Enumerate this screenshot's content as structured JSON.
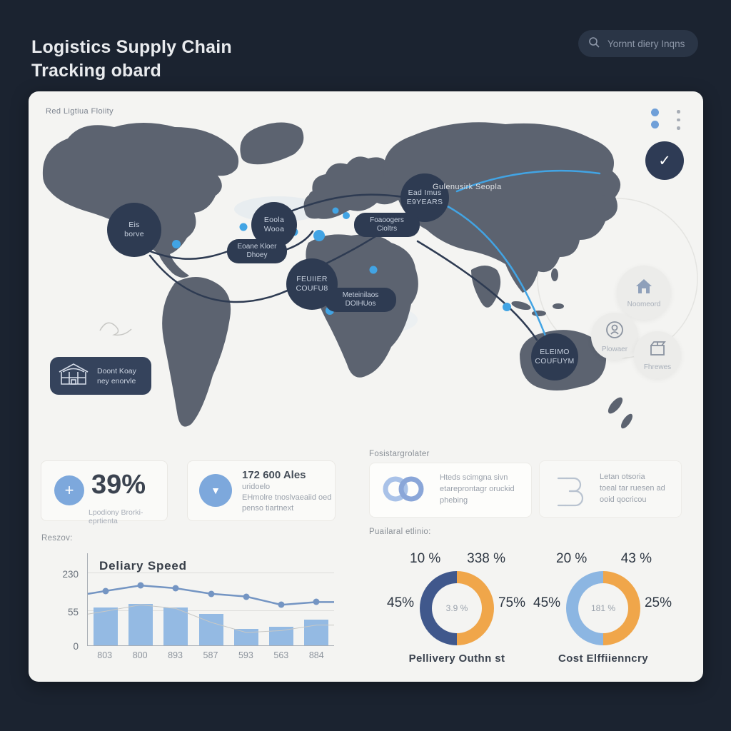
{
  "page": {
    "title_line1": "Logistics Supply Chain",
    "title_line2": "Tracking obard"
  },
  "search": {
    "placeholder": "Yornnt diery Inqns"
  },
  "panel": {
    "header_label": "Red Ligtiua Floiity",
    "controls": {
      "check_glyph": "✓"
    },
    "map": {
      "nodes": [
        {
          "line1": "Eis",
          "line2": "borve"
        },
        {
          "line1": "Eoola",
          "line2": "Wooa"
        },
        {
          "line1": "Ead Imus",
          "line2": "E9YEARS"
        },
        {
          "line1": "FEUIIER",
          "line2": "COUFU8"
        },
        {
          "line1": "ELEIMO",
          "line2": "COUFUYM"
        }
      ],
      "pills": [
        {
          "line1": "Eoane Kloer",
          "line2": "Dhoey"
        },
        {
          "line1": "Foaoogers",
          "line2": "Cioltrs"
        },
        {
          "line1": "Meteinilaos",
          "line2": "DOIHUos"
        }
      ],
      "float_label": "Gulenusirk Seopla",
      "badges": [
        {
          "label": "Noomeord",
          "icon": "warehouse-pin-icon"
        },
        {
          "label": "Plowaer",
          "icon": "badge-circle-icon"
        },
        {
          "label": "Fhrewes",
          "icon": "package-icon"
        }
      ],
      "legend_pill": {
        "line1": "Doont Koay",
        "line2": "ney enorvle",
        "icon": "warehouse-icon"
      }
    },
    "stats": [
      {
        "icon_glyph": "+",
        "value": "39%",
        "label": "Lpodiony Brorki-eprtienta"
      },
      {
        "icon_glyph": "▼",
        "value": "172 600 Ales",
        "lines": [
          "uridoelo",
          "EHmolre tnoslvaeaiid oed",
          "penso tiartnext"
        ]
      }
    ],
    "info_left_header": "Fosistargrolater",
    "info_cards": [
      {
        "icon": "linked-rings-icon",
        "lines": [
          "Hteds scimgna sivn",
          "etareprontagr oruckid",
          "phebing"
        ]
      },
      {
        "icon": "clamp-icon",
        "lines": [
          "Letan otsoria",
          "toeal tar ruesen ad",
          "ooid qocricou"
        ]
      }
    ],
    "bottom_left_label": "Reszov:",
    "donut_header": "Puailaral etlinio:"
  },
  "chart_data": [
    {
      "type": "bar",
      "title": "Deliary Speed",
      "categories": [
        "803",
        "800",
        "893",
        "587",
        "593",
        "563",
        "884"
      ],
      "series": [
        {
          "name": "bars",
          "type": "bar",
          "values": [
            62,
            70,
            62,
            50,
            27,
            30,
            42
          ]
        },
        {
          "name": "trend-line",
          "type": "line",
          "values": [
            157,
            185,
            171,
            144,
            130,
            89,
            103
          ]
        }
      ],
      "ylim": [
        0,
        230
      ],
      "yticks": [
        {
          "label": "230",
          "pct": 78
        },
        {
          "label": "55",
          "pct": 37
        },
        {
          "label": "0",
          "pct": 0
        }
      ],
      "legend_position": "none",
      "grid": true,
      "render": {
        "bar_pct": [
          41,
          45,
          41,
          34,
          18,
          20,
          28
        ],
        "line_pct": [
          59,
          65,
          62,
          56,
          53,
          44,
          47
        ],
        "area_pct": [
          37,
          44,
          40,
          25,
          14,
          16,
          22
        ]
      },
      "colors": {
        "bar": "#94bae3",
        "line": "#7495c3",
        "area_line": "#c8c8c5"
      }
    },
    {
      "type": "pie",
      "title": "Pellivery Outhn st",
      "center_label": "3.9 %",
      "labels": [
        {
          "text": "10 %",
          "pos": "tl"
        },
        {
          "text": "338 %",
          "pos": "tr"
        },
        {
          "text": "45%",
          "pos": "l"
        },
        {
          "text": "75%",
          "pos": "r"
        }
      ],
      "segments": [
        {
          "name": "right-half",
          "color": "#f0a64a",
          "pct": 50
        },
        {
          "name": "left-half",
          "color": "#40588c",
          "pct": 50
        }
      ]
    },
    {
      "type": "pie",
      "title": "Cost Elffiienncry",
      "center_label": "181 %",
      "labels": [
        {
          "text": "20 %",
          "pos": "tl"
        },
        {
          "text": "43 %",
          "pos": "tr"
        },
        {
          "text": "45%",
          "pos": "l"
        },
        {
          "text": "25%",
          "pos": "r"
        }
      ],
      "segments": [
        {
          "name": "right-half",
          "color": "#f0a64a",
          "pct": 50
        },
        {
          "name": "left-half",
          "color": "#8cb6e2",
          "pct": 50
        }
      ]
    }
  ]
}
